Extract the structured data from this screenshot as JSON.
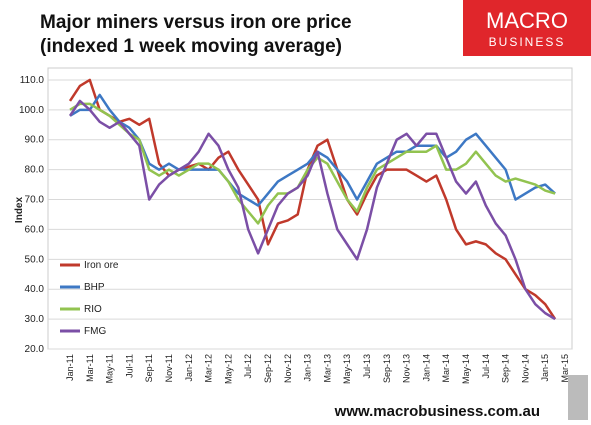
{
  "chart_data": {
    "type": "line",
    "title": "Major miners versus iron ore price",
    "subtitle": "(indexed 1 week moving average)",
    "y_label": "Index",
    "logo": [
      "MACRO",
      "BUSINESS"
    ],
    "footer": "www.macrobusiness.com.au",
    "categories": [
      "Jan-11",
      null,
      "Mar-11",
      null,
      "May-11",
      null,
      "Jul-11",
      null,
      "Sep-11",
      null,
      "Nov-11",
      null,
      "Jan-12",
      null,
      "Mar-12",
      null,
      "May-12",
      null,
      "Jul-12",
      null,
      "Sep-12",
      null,
      "Nov-12",
      null,
      "Jan-13",
      null,
      "Mar-13",
      null,
      "May-13",
      null,
      "Jul-13",
      null,
      "Sep-13",
      null,
      "Nov-13",
      null,
      "Jan-14",
      null,
      "Mar-14",
      null,
      "May-14",
      null,
      "Jul-14",
      null,
      "Sep-14",
      null,
      "Nov-14",
      null,
      "Jan-15",
      null,
      "Mar-15"
    ],
    "series": [
      {
        "name": "Iron ore",
        "color": "#c0392b",
        "values": [
          103,
          108,
          110,
          100,
          98,
          96,
          97,
          95,
          97,
          82,
          78,
          80,
          81,
          82,
          80,
          84,
          86,
          80,
          75,
          70,
          55,
          62,
          63,
          65,
          80,
          88,
          90,
          80,
          70,
          65,
          72,
          78,
          80,
          80,
          80,
          78,
          76,
          78,
          70,
          60,
          55,
          56,
          55,
          52,
          50,
          45,
          40,
          38,
          35,
          30,
          null
        ]
      },
      {
        "name": "BHP",
        "color": "#3d78c4",
        "values": [
          98,
          100,
          100,
          105,
          100,
          96,
          94,
          90,
          82,
          80,
          82,
          80,
          80,
          80,
          80,
          80,
          76,
          72,
          70,
          68,
          72,
          76,
          78,
          80,
          82,
          86,
          84,
          80,
          76,
          70,
          76,
          82,
          84,
          86,
          86,
          88,
          88,
          88,
          84,
          86,
          90,
          92,
          88,
          84,
          80,
          70,
          72,
          74,
          75,
          72,
          null
        ]
      },
      {
        "name": "RIO",
        "color": "#92c350",
        "values": [
          100,
          102,
          102,
          100,
          98,
          95,
          92,
          90,
          80,
          78,
          80,
          78,
          80,
          82,
          82,
          80,
          76,
          70,
          66,
          62,
          68,
          72,
          72,
          74,
          80,
          84,
          82,
          76,
          70,
          66,
          74,
          80,
          82,
          84,
          86,
          86,
          86,
          88,
          80,
          80,
          82,
          86,
          82,
          78,
          76,
          77,
          76,
          75,
          73,
          72,
          null
        ]
      },
      {
        "name": "FMG",
        "color": "#7b4fa6",
        "values": [
          98,
          103,
          100,
          96,
          94,
          96,
          92,
          88,
          70,
          75,
          78,
          80,
          82,
          86,
          92,
          88,
          80,
          74,
          60,
          52,
          60,
          68,
          72,
          74,
          78,
          86,
          72,
          60,
          55,
          50,
          60,
          74,
          82,
          90,
          92,
          88,
          92,
          92,
          84,
          76,
          72,
          76,
          68,
          62,
          58,
          50,
          40,
          35,
          32,
          30,
          null
        ]
      }
    ],
    "ylim": [
      20,
      114
    ],
    "yticks": [
      {
        "value": 20,
        "label": "20.0"
      },
      {
        "value": 30,
        "label": "30.0"
      },
      {
        "value": 40,
        "label": "40.0"
      },
      {
        "value": 50,
        "label": "50.0"
      },
      {
        "value": 60,
        "label": "60.0"
      },
      {
        "value": 70,
        "label": "70.0"
      },
      {
        "value": 80,
        "label": "80.0"
      },
      {
        "value": 90,
        "label": "90.0"
      },
      {
        "value": 100,
        "label": "100.0"
      },
      {
        "value": 110,
        "label": "110.0"
      }
    ],
    "grid": true,
    "legend": "lower left"
  }
}
